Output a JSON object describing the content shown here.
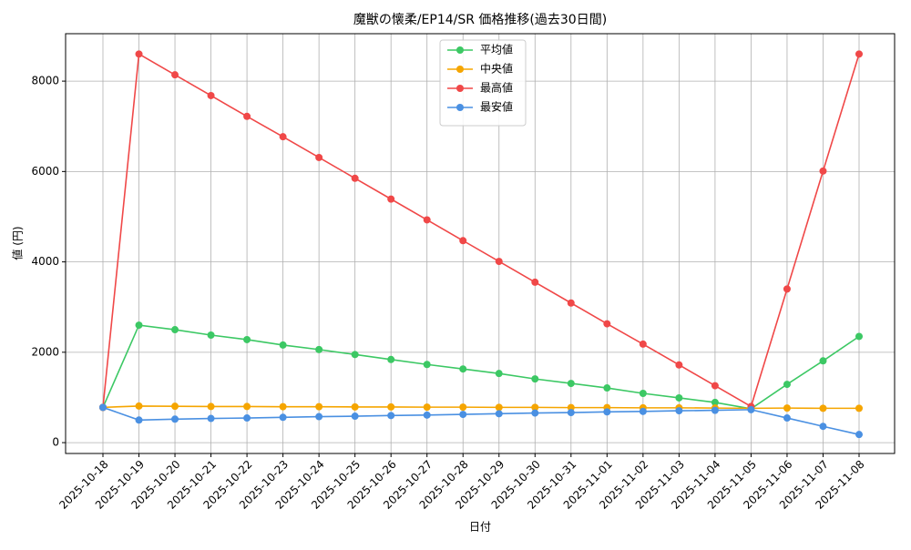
{
  "chart_data": {
    "type": "line",
    "title": "魔獣の懐柔/EP14/SR 価格推移(過去30日間)",
    "x_label": "日付",
    "y_label": "値 (円)",
    "categories": [
      "2025-10-18",
      "2025-10-19",
      "2025-10-20",
      "2025-10-21",
      "2025-10-22",
      "2025-10-23",
      "2025-10-24",
      "2025-10-25",
      "2025-10-26",
      "2025-10-27",
      "2025-10-28",
      "2025-10-29",
      "2025-10-30",
      "2025-10-31",
      "2025-11-01",
      "2025-11-02",
      "2025-11-03",
      "2025-11-04",
      "2025-11-05",
      "2025-11-06",
      "2025-11-07",
      "2025-11-08"
    ],
    "series": [
      {
        "name": "平均値",
        "color": "#3cc864",
        "values": [
          780,
          2600,
          2500,
          2380,
          2280,
          2160,
          2060,
          1950,
          1840,
          1730,
          1630,
          1530,
          1410,
          1310,
          1210,
          1090,
          990,
          890,
          750,
          1290,
          1810,
          2350
        ]
      },
      {
        "name": "中央値",
        "color": "#f5a500",
        "values": [
          780,
          810,
          805,
          800,
          800,
          795,
          795,
          790,
          790,
          785,
          785,
          780,
          780,
          775,
          775,
          770,
          770,
          765,
          760,
          765,
          760,
          760
        ]
      },
      {
        "name": "最高値",
        "color": "#f04848",
        "values": [
          780,
          8600,
          8140,
          7680,
          7220,
          6770,
          6310,
          5850,
          5390,
          4930,
          4470,
          4010,
          3550,
          3090,
          2630,
          2180,
          1720,
          1260,
          800,
          3400,
          6010,
          8600
        ]
      },
      {
        "name": "最安値",
        "color": "#4a90e2",
        "values": [
          780,
          500,
          520,
          535,
          545,
          560,
          575,
          585,
          600,
          610,
          625,
          640,
          655,
          665,
          680,
          690,
          705,
          715,
          730,
          545,
          360,
          180
        ]
      }
    ],
    "ylim": [
      -240,
      9050
    ],
    "yticks": [
      0,
      2000,
      4000,
      6000,
      8000
    ],
    "grid": true,
    "legend": "upper center"
  }
}
